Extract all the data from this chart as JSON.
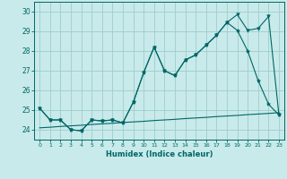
{
  "xlabel": "Humidex (Indice chaleur)",
  "ylabel": "",
  "background_color": "#c8eaea",
  "grid_color": "#a0cccc",
  "line_color": "#006666",
  "x": [
    0,
    1,
    2,
    3,
    4,
    5,
    6,
    7,
    8,
    9,
    10,
    11,
    12,
    13,
    14,
    15,
    16,
    17,
    18,
    19,
    20,
    21,
    22,
    23
  ],
  "line1": [
    25.1,
    24.5,
    24.5,
    24.0,
    23.95,
    24.5,
    24.45,
    24.5,
    24.35,
    25.4,
    26.9,
    28.2,
    27.0,
    26.75,
    27.55,
    27.8,
    28.3,
    28.8,
    29.45,
    29.05,
    28.0,
    26.5,
    25.3,
    24.75
  ],
  "line2": [
    25.1,
    24.5,
    24.5,
    24.0,
    23.95,
    24.5,
    24.45,
    24.5,
    24.35,
    25.4,
    26.9,
    28.2,
    27.0,
    26.75,
    27.55,
    27.8,
    28.3,
    28.8,
    29.45,
    29.85,
    29.05,
    29.15,
    29.75,
    24.75
  ],
  "line3": [
    24.1,
    24.13,
    24.17,
    24.2,
    24.23,
    24.27,
    24.3,
    24.33,
    24.37,
    24.4,
    24.43,
    24.47,
    24.5,
    24.53,
    24.57,
    24.6,
    24.63,
    24.67,
    24.7,
    24.73,
    24.77,
    24.8,
    24.83,
    24.87
  ],
  "ylim": [
    23.5,
    30.5
  ],
  "xlim": [
    -0.5,
    23.5
  ],
  "yticks": [
    24,
    25,
    26,
    27,
    28,
    29,
    30
  ],
  "xticks": [
    0,
    1,
    2,
    3,
    4,
    5,
    6,
    7,
    8,
    9,
    10,
    11,
    12,
    13,
    14,
    15,
    16,
    17,
    18,
    19,
    20,
    21,
    22,
    23
  ]
}
